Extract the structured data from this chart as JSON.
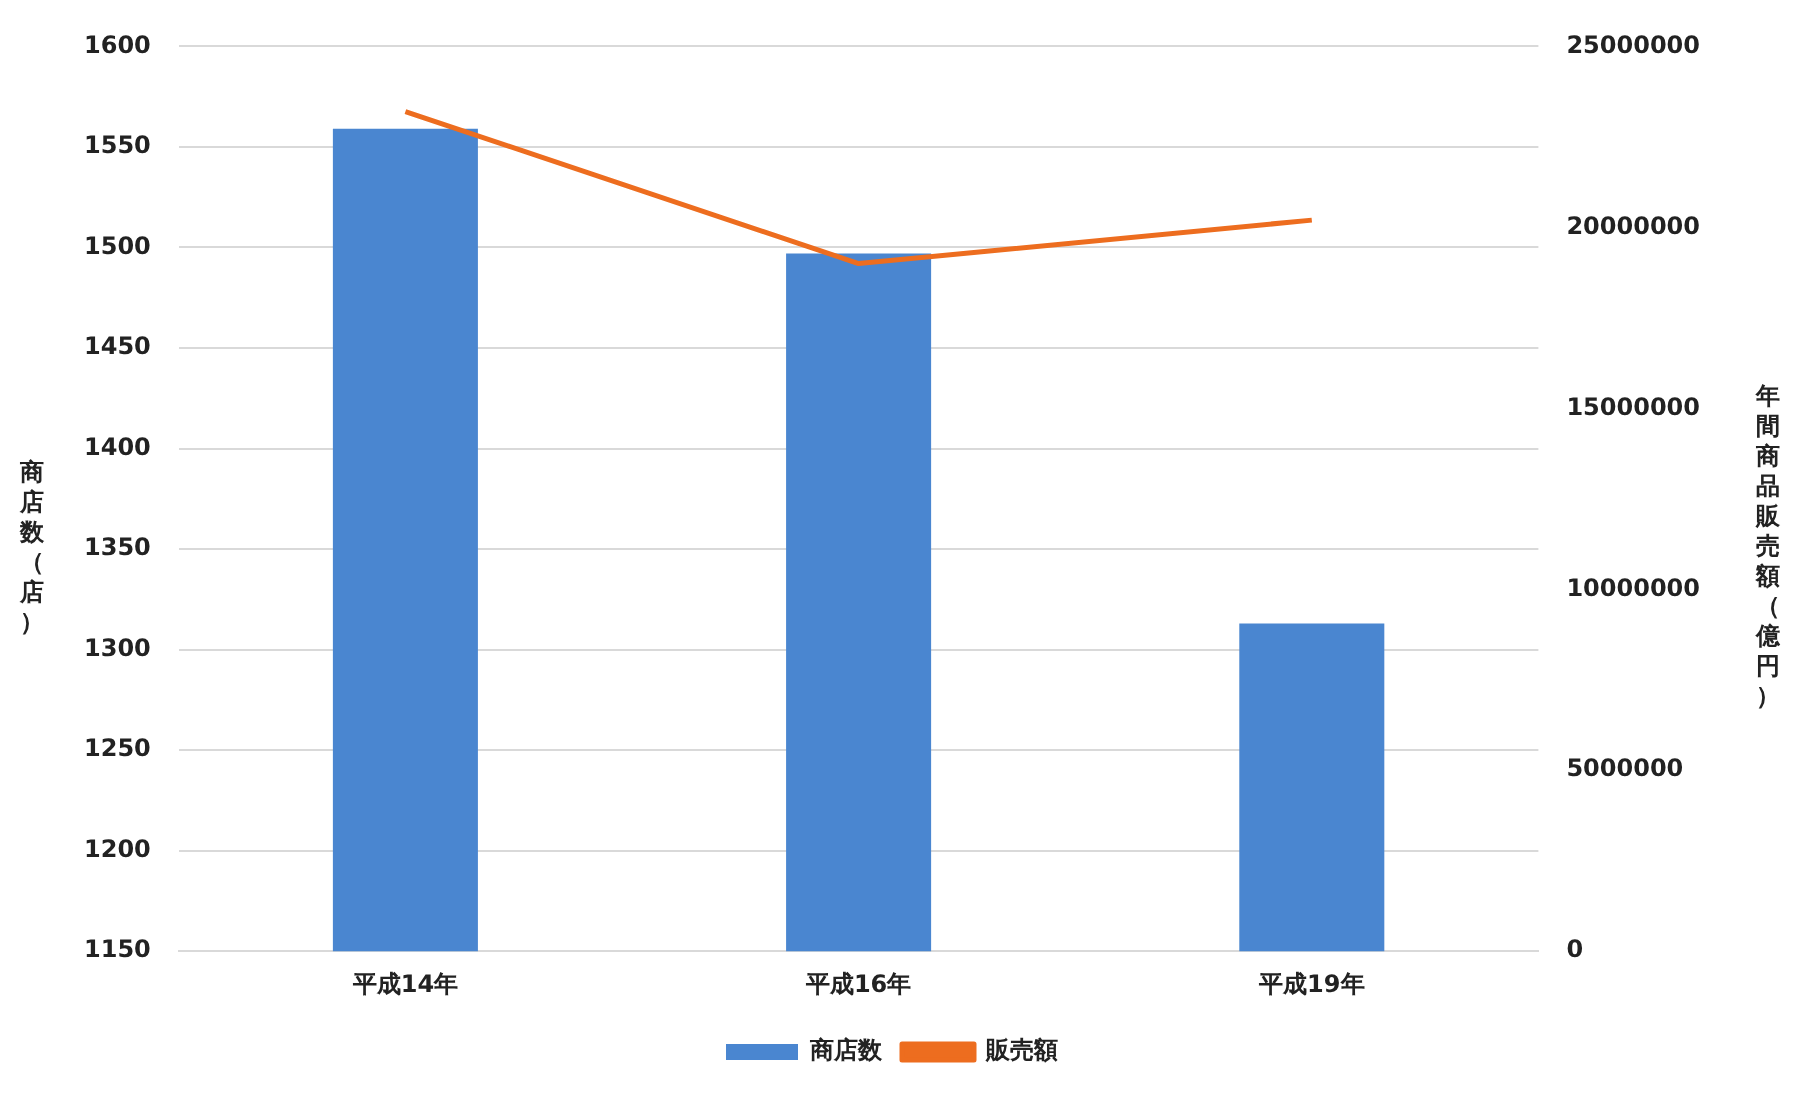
{
  "chart_data": {
    "type": "bar",
    "categories": [
      "平成14年",
      "平成16年",
      "平成19年"
    ],
    "series": [
      {
        "name": "商店数",
        "color": "#4a86d0",
        "values": [
          1559,
          1497,
          1313
        ]
      },
      {
        "name": "販売額",
        "type": "line",
        "axis": "y2",
        "color": "#ed6d1f",
        "values": [
          23200000,
          19000000,
          20200000
        ]
      }
    ],
    "ylabel": "商店数（店）",
    "y2label": "年間商品販売額（億円）",
    "ylim": [
      1150,
      1600
    ],
    "yticks": [
      1150,
      1200,
      1250,
      1300,
      1350,
      1400,
      1450,
      1500,
      1550,
      1600
    ],
    "y2lim": [
      0,
      25000000
    ],
    "y2ticks": [
      0,
      5000000,
      10000000,
      15000000,
      20000000,
      25000000
    ],
    "grid": "y",
    "legend": "bottom",
    "marker": "none"
  }
}
